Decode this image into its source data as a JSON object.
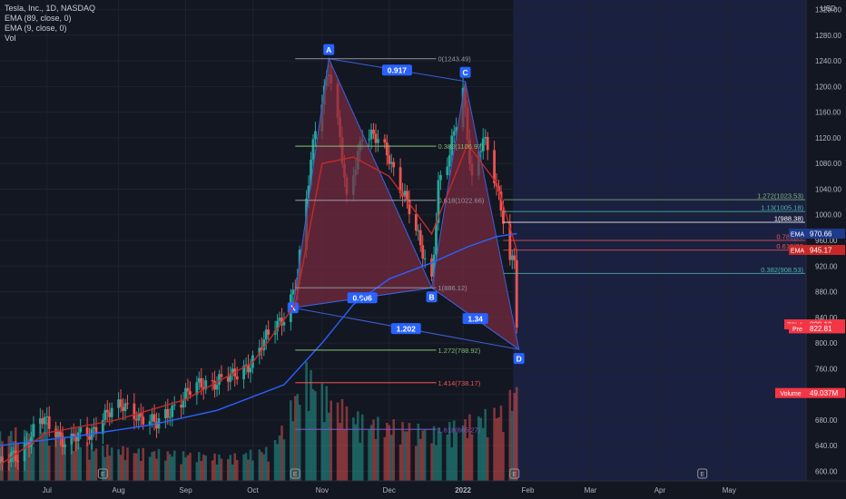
{
  "legend": {
    "symbol": "Tesla, Inc., 1D, NASDAQ",
    "ema_slow": "EMA (89, close, 0)",
    "ema_fast": "EMA (9, close, 0)",
    "volume": "Vol"
  },
  "currency": "USD",
  "colors": {
    "background": "#131722",
    "future_shade": "#1a2040",
    "up": "#26a69a",
    "down": "#ef5350",
    "pattern_fill": "#7a2b40",
    "pattern_line": "#3d5fd6",
    "ema_slow": "#2962ff",
    "ema_fast": "#c62828",
    "price_label": "#f23645",
    "point_label": "#2962ff"
  },
  "chart_data": {
    "type": "candlestick",
    "y_axis": {
      "range": [
        585,
        1335
      ],
      "ticks": [
        600,
        640,
        680,
        720,
        760,
        800,
        840,
        880,
        920,
        960,
        1000,
        1040,
        1080,
        1120,
        1160,
        1200,
        1240,
        1280,
        1320
      ]
    },
    "x_axis": {
      "range": [
        "2021-06-10",
        "2022-05-25"
      ],
      "ticks": [
        {
          "date": "2021-07-01",
          "label": "Jul"
        },
        {
          "date": "2021-08-02",
          "label": "Aug"
        },
        {
          "date": "2021-09-01",
          "label": "Sep"
        },
        {
          "date": "2021-10-01",
          "label": "Oct"
        },
        {
          "date": "2021-11-01",
          "label": "Nov"
        },
        {
          "date": "2021-12-01",
          "label": "Dec"
        },
        {
          "date": "2022-01-03",
          "label": "2022"
        },
        {
          "date": "2022-02-01",
          "label": "Feb"
        },
        {
          "date": "2022-03-01",
          "label": "Mar"
        },
        {
          "date": "2022-04-01",
          "label": "Apr"
        },
        {
          "date": "2022-05-02",
          "label": "May"
        }
      ]
    },
    "close_path": [
      [
        "2021-06-10",
        610
      ],
      [
        "2021-06-18",
        625
      ],
      [
        "2021-06-28",
        680
      ],
      [
        "2021-07-09",
        650
      ],
      [
        "2021-07-20",
        655
      ],
      [
        "2021-07-26",
        690
      ],
      [
        "2021-08-06",
        700
      ],
      [
        "2021-08-19",
        670
      ],
      [
        "2021-08-27",
        705
      ],
      [
        "2021-09-10",
        740
      ],
      [
        "2021-09-22",
        745
      ],
      [
        "2021-10-01",
        775
      ],
      [
        "2021-10-15",
        845
      ],
      [
        "2021-10-21",
        900
      ],
      [
        "2021-10-25",
        1020
      ],
      [
        "2021-10-29",
        1140
      ],
      [
        "2021-11-04",
        1230
      ],
      [
        "2021-11-09",
        1115
      ],
      [
        "2021-11-12",
        1020
      ],
      [
        "2021-11-19",
        1130
      ],
      [
        "2021-11-24",
        1120
      ],
      [
        "2021-12-01",
        1090
      ],
      [
        "2021-12-08",
        1030
      ],
      [
        "2021-12-13",
        970
      ],
      [
        "2021-12-20",
        900
      ],
      [
        "2021-12-23",
        1050
      ],
      [
        "2021-12-28",
        1090
      ],
      [
        "2022-01-03",
        1195
      ],
      [
        "2022-01-07",
        1060
      ],
      [
        "2022-01-12",
        1120
      ],
      [
        "2022-01-18",
        1040
      ],
      [
        "2022-01-21",
        1000
      ],
      [
        "2022-01-24",
        930
      ],
      [
        "2022-01-26",
        940
      ],
      [
        "2022-01-27",
        829
      ]
    ],
    "ema_slow_path": [
      [
        "2021-06-10",
        640
      ],
      [
        "2021-07-15",
        655
      ],
      [
        "2021-08-16",
        672
      ],
      [
        "2021-09-15",
        695
      ],
      [
        "2021-10-15",
        735
      ],
      [
        "2021-11-01",
        800
      ],
      [
        "2021-11-15",
        860
      ],
      [
        "2021-12-01",
        900
      ],
      [
        "2021-12-20",
        925
      ],
      [
        "2022-01-05",
        950
      ],
      [
        "2022-01-18",
        966
      ],
      [
        "2022-01-27",
        970.66
      ]
    ],
    "ema_fast_path": [
      [
        "2021-06-10",
        610
      ],
      [
        "2021-07-01",
        660
      ],
      [
        "2021-08-01",
        680
      ],
      [
        "2021-09-01",
        712
      ],
      [
        "2021-10-01",
        770
      ],
      [
        "2021-10-20",
        860
      ],
      [
        "2021-11-01",
        1080
      ],
      [
        "2021-11-15",
        1090
      ],
      [
        "2021-12-01",
        1060
      ],
      [
        "2021-12-20",
        970
      ],
      [
        "2022-01-05",
        1110
      ],
      [
        "2022-01-18",
        1050
      ],
      [
        "2022-01-27",
        945.17
      ]
    ],
    "volume_profile": [
      [
        "2021-06-10",
        0.42
      ],
      [
        "2021-07-01",
        0.5
      ],
      [
        "2021-07-20",
        0.32
      ],
      [
        "2021-08-10",
        0.28
      ],
      [
        "2021-09-01",
        0.25
      ],
      [
        "2021-09-20",
        0.22
      ],
      [
        "2021-10-10",
        0.3
      ],
      [
        "2021-10-25",
        1.0
      ],
      [
        "2021-11-05",
        0.75
      ],
      [
        "2021-11-20",
        0.55
      ],
      [
        "2021-12-10",
        0.5
      ],
      [
        "2021-12-20",
        0.45
      ],
      [
        "2022-01-05",
        0.55
      ],
      [
        "2022-01-20",
        0.65
      ],
      [
        "2022-01-27",
        0.85
      ]
    ],
    "pattern": {
      "points": [
        {
          "label": "X",
          "date": "2021-10-19",
          "price": 855
        },
        {
          "label": "A",
          "date": "2021-11-04",
          "price": 1243.49
        },
        {
          "label": "B",
          "date": "2021-12-20",
          "price": 886.12
        },
        {
          "label": "C",
          "date": "2022-01-04",
          "price": 1208
        },
        {
          "label": "D",
          "date": "2022-01-28",
          "price": 790
        }
      ],
      "ratios": [
        {
          "text": "0.917",
          "between": [
            "A",
            "C"
          ]
        },
        {
          "text": "0.906",
          "between": [
            "X",
            "B"
          ]
        },
        {
          "text": "1.202",
          "between": [
            "X",
            "D"
          ]
        },
        {
          "text": "1.34",
          "between": [
            "B",
            "D"
          ]
        }
      ]
    },
    "fib_levels_ab": [
      {
        "text": "0(1243.49)",
        "price": 1243.49,
        "color": "#9598a1"
      },
      {
        "text": "0.382(1106.97)",
        "price": 1106.97,
        "color": "#82b86f"
      },
      {
        "text": "0.618(1022.66)",
        "price": 1022.66,
        "color": "#9598a1"
      },
      {
        "text": "1(886.12)",
        "price": 886.12,
        "color": "#9598a1"
      },
      {
        "text": "1.272(788.92)",
        "price": 788.92,
        "color": "#82b86f"
      },
      {
        "text": "1.414(738.17)",
        "price": 738.17,
        "color": "#ef5350"
      },
      {
        "text": "1.618(665.27)",
        "price": 665.27,
        "color": "#7e57c2"
      }
    ],
    "fib_levels_right": [
      {
        "text": "1.272(1023.53)",
        "price": 1023.53,
        "color": "#82b86f"
      },
      {
        "text": "1.13(1005.18)",
        "price": 1005.18,
        "color": "#4db6ac"
      },
      {
        "text": "1(988.38)",
        "price": 988.38,
        "color": "#ffffff"
      },
      {
        "text": "0.786(96",
        "price": 960,
        "color": "#ef5350"
      },
      {
        "text": "0.618(93",
        "price": 945,
        "color": "#ef5350"
      },
      {
        "text": "0.382(908.53)",
        "price": 908.53,
        "color": "#4db6ac"
      }
    ],
    "price_labels": [
      {
        "tag": "EMA",
        "value": "970.66",
        "price": 970.66,
        "tag_color": "#1e3a8a",
        "value_color": "#1e3a8a"
      },
      {
        "tag": "EMA",
        "value": "945.17",
        "price": 945.17,
        "tag_color": "#c62828",
        "value_color": "#c62828"
      },
      {
        "tag": "TSLA",
        "value": "829.10",
        "price": 829.1,
        "tag_color": "#f23645",
        "value_color": "#f23645"
      },
      {
        "tag": "Pre",
        "value": "822.81",
        "price": 822.81,
        "tag_color": "#f23645",
        "value_color": "#f23645"
      },
      {
        "tag": "Volume",
        "value": "49.037M",
        "price": 722,
        "tag_color": "#f23645",
        "value_color": "#f23645"
      }
    ],
    "event_markers": [
      {
        "text": "E",
        "date": "2021-07-26"
      },
      {
        "text": "E",
        "date": "2021-10-20"
      },
      {
        "text": "E",
        "date": "2022-01-26"
      },
      {
        "text": "E",
        "date": "2022-04-20"
      }
    ]
  }
}
